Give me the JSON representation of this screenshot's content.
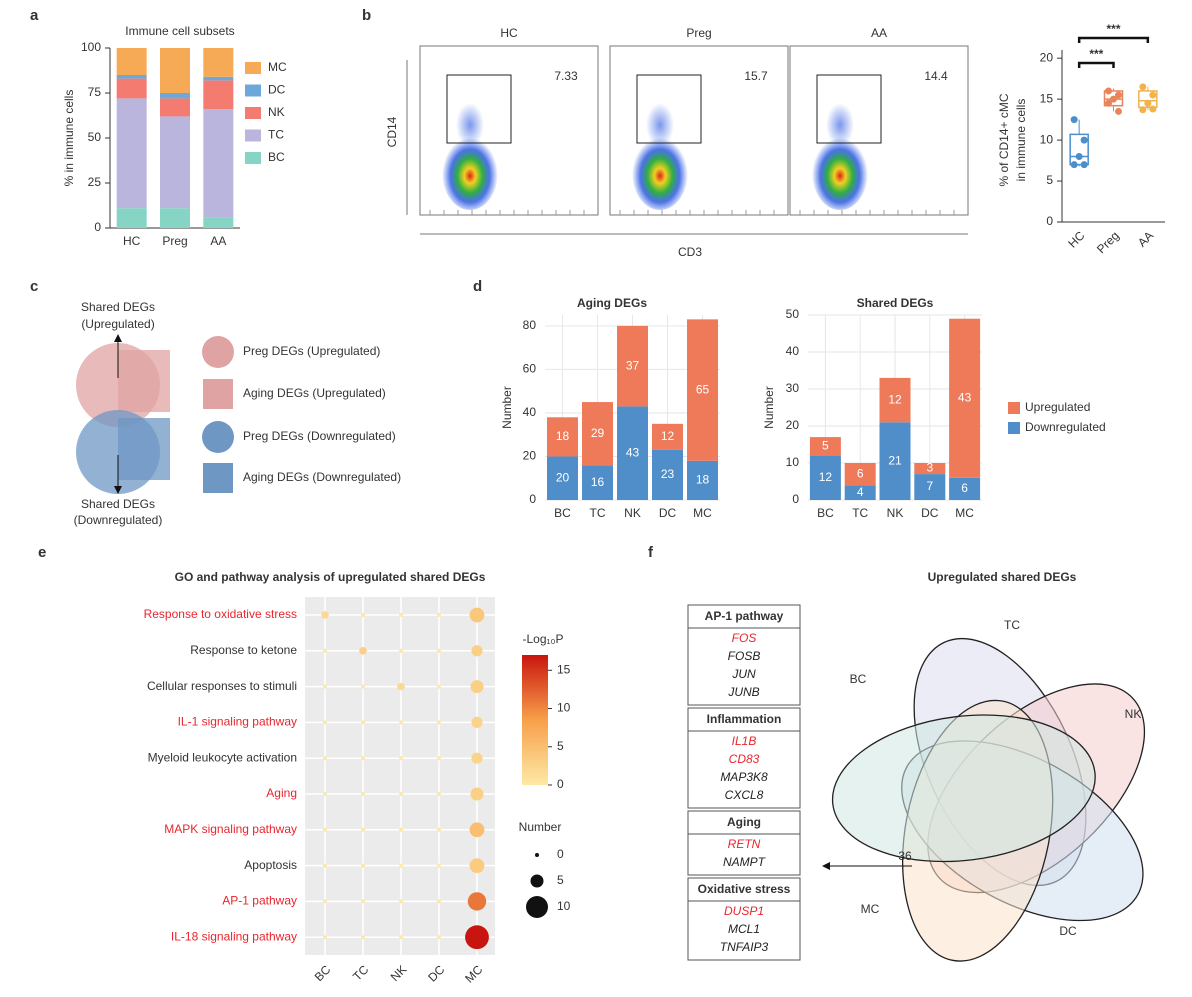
{
  "panels": [
    "a",
    "b",
    "c",
    "d",
    "e",
    "f"
  ],
  "chart_data": [
    {
      "type": "stacked",
      "title": "Immune cell subsets",
      "ylabel": "% in immune cells",
      "categories": [
        "HC",
        "Preg",
        "AA"
      ],
      "series": [
        {
          "name": "BC",
          "color": "#86d4c4",
          "values": [
            11,
            11,
            6
          ]
        },
        {
          "name": "TC",
          "color": "#b9b5dd",
          "values": [
            61,
            51,
            60
          ]
        },
        {
          "name": "NK",
          "color": "#f37b70",
          "values": [
            11,
            10,
            16
          ]
        },
        {
          "name": "DC",
          "color": "#6ea8d8",
          "values": [
            2,
            3,
            2
          ]
        },
        {
          "name": "MC",
          "color": "#f7aa55",
          "values": [
            15,
            25,
            16
          ]
        }
      ],
      "ylim": [
        0,
        100
      ],
      "yticks": [
        0,
        25,
        50,
        75,
        100
      ]
    },
    {
      "type": "flow",
      "ylabel": "CD14",
      "xlabel": "CD3",
      "categories": [
        "HC",
        "Preg",
        "AA"
      ],
      "values": [
        7.33,
        15.7,
        14.4
      ]
    },
    {
      "type": "box",
      "ylabel": [
        "% of CD14+ cMC",
        "in immune cells"
      ],
      "categories": [
        "HC",
        "Preg",
        "AA"
      ],
      "colors": [
        "#4a8fcc",
        "#e8845a",
        "#f2b24c"
      ],
      "points": [
        [
          12.5,
          10,
          8,
          7,
          7
        ],
        [
          16,
          15.5,
          15,
          14.5,
          13.5
        ],
        [
          16.5,
          15.5,
          14.5,
          13.7,
          13.8
        ]
      ],
      "whisker_low": [
        6.8,
        13.5,
        13.7
      ],
      "q1": [
        7,
        14.2,
        14
      ],
      "median": [
        8,
        15,
        14.8
      ],
      "q3": [
        10.7,
        16,
        16
      ],
      "whisker_high": [
        12.5,
        16.3,
        16.5
      ],
      "ylim": [
        0,
        21
      ],
      "yticks": [
        0,
        5,
        10,
        15,
        20
      ],
      "annotations": [
        {
          "text": "***",
          "from": 0,
          "to": 1
        },
        {
          "text": "***",
          "from": 0,
          "to": 2
        }
      ]
    },
    {
      "type": "stacked",
      "title": "Aging DEGs",
      "ylabel": "Number",
      "categories": [
        "BC",
        "TC",
        "NK",
        "DC",
        "MC"
      ],
      "series": [
        {
          "color": "#4f8ec9",
          "values": [
            20,
            16,
            43,
            23,
            18
          ]
        },
        {
          "color": "#ee7a5a",
          "values": [
            18,
            29,
            37,
            12,
            65
          ]
        }
      ],
      "ylim": [
        0,
        85
      ],
      "yticks": [
        0,
        20,
        40,
        60,
        80
      ],
      "grid": true
    },
    {
      "type": "stacked",
      "title": "Shared DEGs",
      "ylabel": "Number",
      "categories": [
        "BC",
        "TC",
        "NK",
        "DC",
        "MC"
      ],
      "series": [
        {
          "name": "Downregulated",
          "color": "#4f8ec9",
          "values": [
            12,
            4,
            21,
            7,
            6
          ]
        },
        {
          "name": "Upregulated",
          "color": "#ee7a5a",
          "values": [
            5,
            6,
            12,
            3,
            43
          ]
        }
      ],
      "ylim": [
        0,
        50
      ],
      "yticks": [
        0,
        10,
        20,
        30,
        40,
        50
      ],
      "grid": true
    },
    {
      "type": "dotplot",
      "title": "GO and pathway analysis of upregulated shared DEGs",
      "rows": [
        "Response to oxidative stress",
        "Response to ketone",
        "Cellular responses to stimuli",
        "IL-1 signaling pathway",
        "Myeloid leukocyte activation",
        "Aging",
        "MAPK signaling pathway",
        "Apoptosis",
        "AP-1 pathway",
        "IL-18 signaling pathway"
      ],
      "row_colors": [
        "#e8262d",
        "#333333",
        "#333333",
        "#e8262d",
        "#333333",
        "#e8262d",
        "#e8262d",
        "#333333",
        "#e8262d",
        "#e8262d"
      ],
      "columns": [
        "BC",
        "TC",
        "NK",
        "DC",
        "MC"
      ],
      "sizes": [
        [
          2,
          0,
          0,
          0,
          6
        ],
        [
          0,
          2,
          0,
          0,
          4
        ],
        [
          0,
          0,
          2,
          0,
          5
        ],
        [
          0,
          0,
          0,
          0,
          4
        ],
        [
          0,
          0,
          0,
          0,
          4
        ],
        [
          0,
          0,
          0,
          0,
          5
        ],
        [
          0,
          0,
          0,
          0,
          6
        ],
        [
          0,
          0,
          0,
          0,
          6
        ],
        [
          0,
          0,
          0,
          0,
          8
        ],
        [
          0,
          0,
          0,
          0,
          11
        ]
      ],
      "colors": [
        [
          2,
          0,
          0,
          0,
          4
        ],
        [
          0,
          3,
          0,
          0,
          3
        ],
        [
          0,
          0,
          2,
          0,
          3
        ],
        [
          0,
          0,
          0,
          0,
          2.5
        ],
        [
          0,
          0,
          0,
          0,
          2.5
        ],
        [
          0,
          0,
          0,
          0,
          3
        ],
        [
          0,
          0,
          0,
          0,
          5
        ],
        [
          0,
          0,
          0,
          0,
          3.5
        ],
        [
          0,
          0,
          0,
          0,
          11
        ],
        [
          0,
          0,
          0,
          0,
          17
        ]
      ],
      "colormap": [
        "#fde9a6",
        "#f7a04a",
        "#c9150f"
      ],
      "color_label": "-Log₁₀P",
      "color_lim": [
        0,
        17
      ],
      "color_ticks": [
        0,
        5,
        10,
        15
      ],
      "size_label": "Number",
      "size_ticks": [
        0,
        5,
        10
      ]
    }
  ],
  "diagram": {
    "top_label": [
      "Shared DEGs",
      "(Upregulated)"
    ],
    "bottom_label": [
      "Shared DEGs",
      "(Downregulated)"
    ],
    "legend": [
      {
        "label": "Preg DEGs (Upregulated)",
        "shape": "circle",
        "color": "#e0a3a3"
      },
      {
        "label": "Aging DEGs (Upregulated)",
        "shape": "square",
        "color": "#e0a3a3"
      },
      {
        "label": "Preg DEGs (Downregulated)",
        "shape": "circle",
        "color": "#6f97c4"
      },
      {
        "label": "Aging DEGs (Downregulated)",
        "shape": "square",
        "color": "#6f97c4"
      }
    ]
  },
  "venn": {
    "title": "Upregulated shared DEGs",
    "groups": [
      {
        "title": "AP-1 pathway",
        "genes": [
          {
            "name": "FOS",
            "highlight": true
          },
          {
            "name": "FOSB",
            "highlight": false
          },
          {
            "name": "JUN",
            "highlight": false
          },
          {
            "name": "JUNB",
            "highlight": false
          }
        ]
      },
      {
        "title": "Inflammation",
        "genes": [
          {
            "name": "IL1B",
            "highlight": true
          },
          {
            "name": "CD83",
            "highlight": true
          },
          {
            "name": "MAP3K8",
            "highlight": false
          },
          {
            "name": "CXCL8",
            "highlight": false
          }
        ]
      },
      {
        "title": "Aging",
        "genes": [
          {
            "name": "RETN",
            "highlight": true
          },
          {
            "name": "NAMPT",
            "highlight": false
          }
        ]
      },
      {
        "title": "Oxidative stress",
        "genes": [
          {
            "name": "DUSP1",
            "highlight": true
          },
          {
            "name": "MCL1",
            "highlight": false
          },
          {
            "name": "TNFAIP3",
            "highlight": false
          }
        ]
      }
    ],
    "sets": [
      {
        "name": "TC",
        "color": "#dcdcef"
      },
      {
        "name": "NK",
        "color": "#f5cccc"
      },
      {
        "name": "DC",
        "color": "#cfe0ef"
      },
      {
        "name": "MC",
        "color": "#fbe3cc"
      },
      {
        "name": "BC",
        "color": "#cfe8e2"
      }
    ],
    "count": 36
  }
}
